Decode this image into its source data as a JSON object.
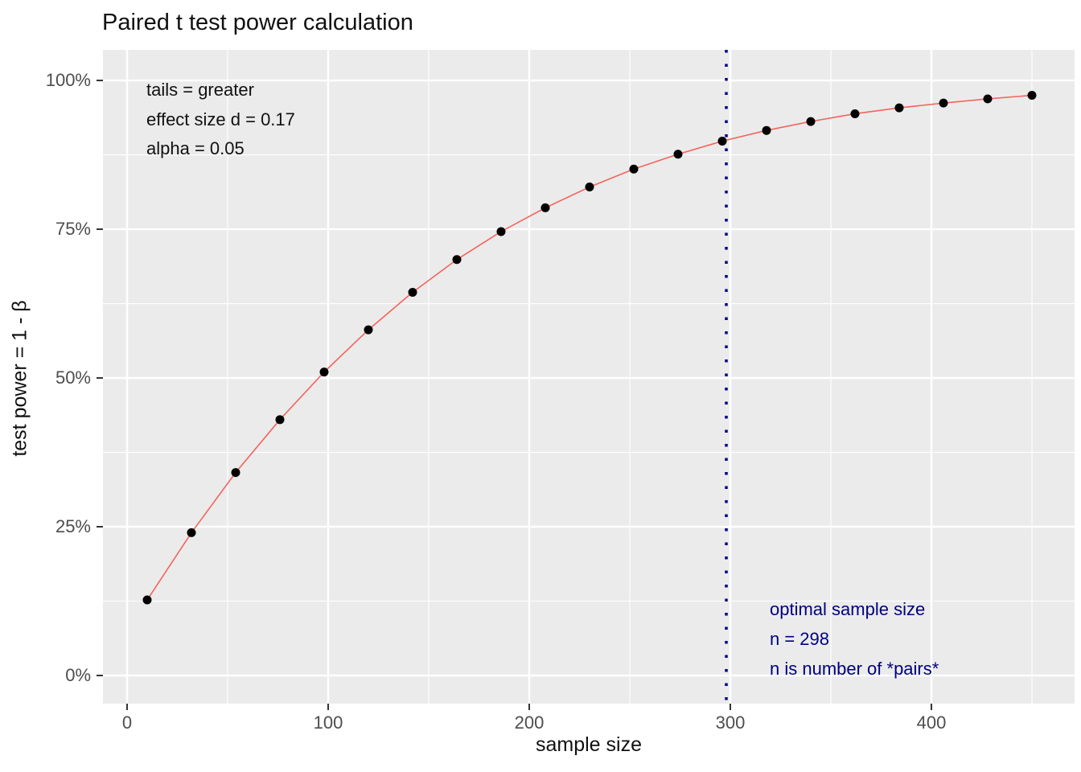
{
  "title": "Paired t test power calculation",
  "x_axis": {
    "label": "sample size",
    "tick_labels": [
      "0",
      "100",
      "200",
      "300",
      "400"
    ],
    "tick_values": [
      0,
      100,
      200,
      300,
      400
    ]
  },
  "y_axis": {
    "label": "test power = 1 - β",
    "tick_labels": [
      "0%",
      "25%",
      "50%",
      "75%",
      "100%"
    ],
    "tick_values": [
      0,
      25,
      50,
      75,
      100
    ]
  },
  "annotations": {
    "params": {
      "line1": "tails = greater",
      "line2": "effect size d = 0.17",
      "line3": "alpha = 0.05"
    },
    "optimal": {
      "line1": "optimal sample size",
      "line2": "n = 298",
      "line3": "n is number of *pairs*"
    }
  },
  "colors": {
    "panel_bg": "#EBEBEB",
    "grid": "#FFFFFF",
    "curve": "#F4645C",
    "point": "#000000",
    "vline": "#000080",
    "note_blue": "#000080",
    "tick_label": "#4D4D4D",
    "tick_mark": "#333333"
  },
  "chart_data": {
    "type": "line",
    "title": "Paired t test power calculation",
    "xlabel": "sample size",
    "ylabel": "test power = 1 - β",
    "x": [
      10,
      32,
      54,
      76,
      98,
      120,
      142,
      164,
      186,
      208,
      230,
      252,
      274,
      296,
      318,
      340,
      362,
      384,
      406,
      428,
      450
    ],
    "y_percent": [
      12.7,
      24.0,
      34.1,
      43.0,
      51.0,
      58.1,
      64.4,
      69.9,
      74.6,
      78.6,
      82.1,
      85.1,
      87.6,
      89.8,
      91.6,
      93.1,
      94.4,
      95.4,
      96.2,
      96.9,
      97.5
    ],
    "x_ticks": [
      0,
      100,
      200,
      300,
      400
    ],
    "y_ticks_percent": [
      0,
      25,
      50,
      75,
      100
    ],
    "xlim": [
      -12,
      471.2
    ],
    "ylim_percent": [
      -4.73,
      105.14
    ],
    "vline": {
      "x": 298,
      "style": "dotted"
    },
    "grid": true,
    "legend": false,
    "notes": {
      "params": [
        "tails = greater",
        "effect size d = 0.17",
        "alpha = 0.05"
      ],
      "optimal": [
        "optimal sample size",
        "n = 298",
        "n is number of *pairs*"
      ]
    }
  }
}
